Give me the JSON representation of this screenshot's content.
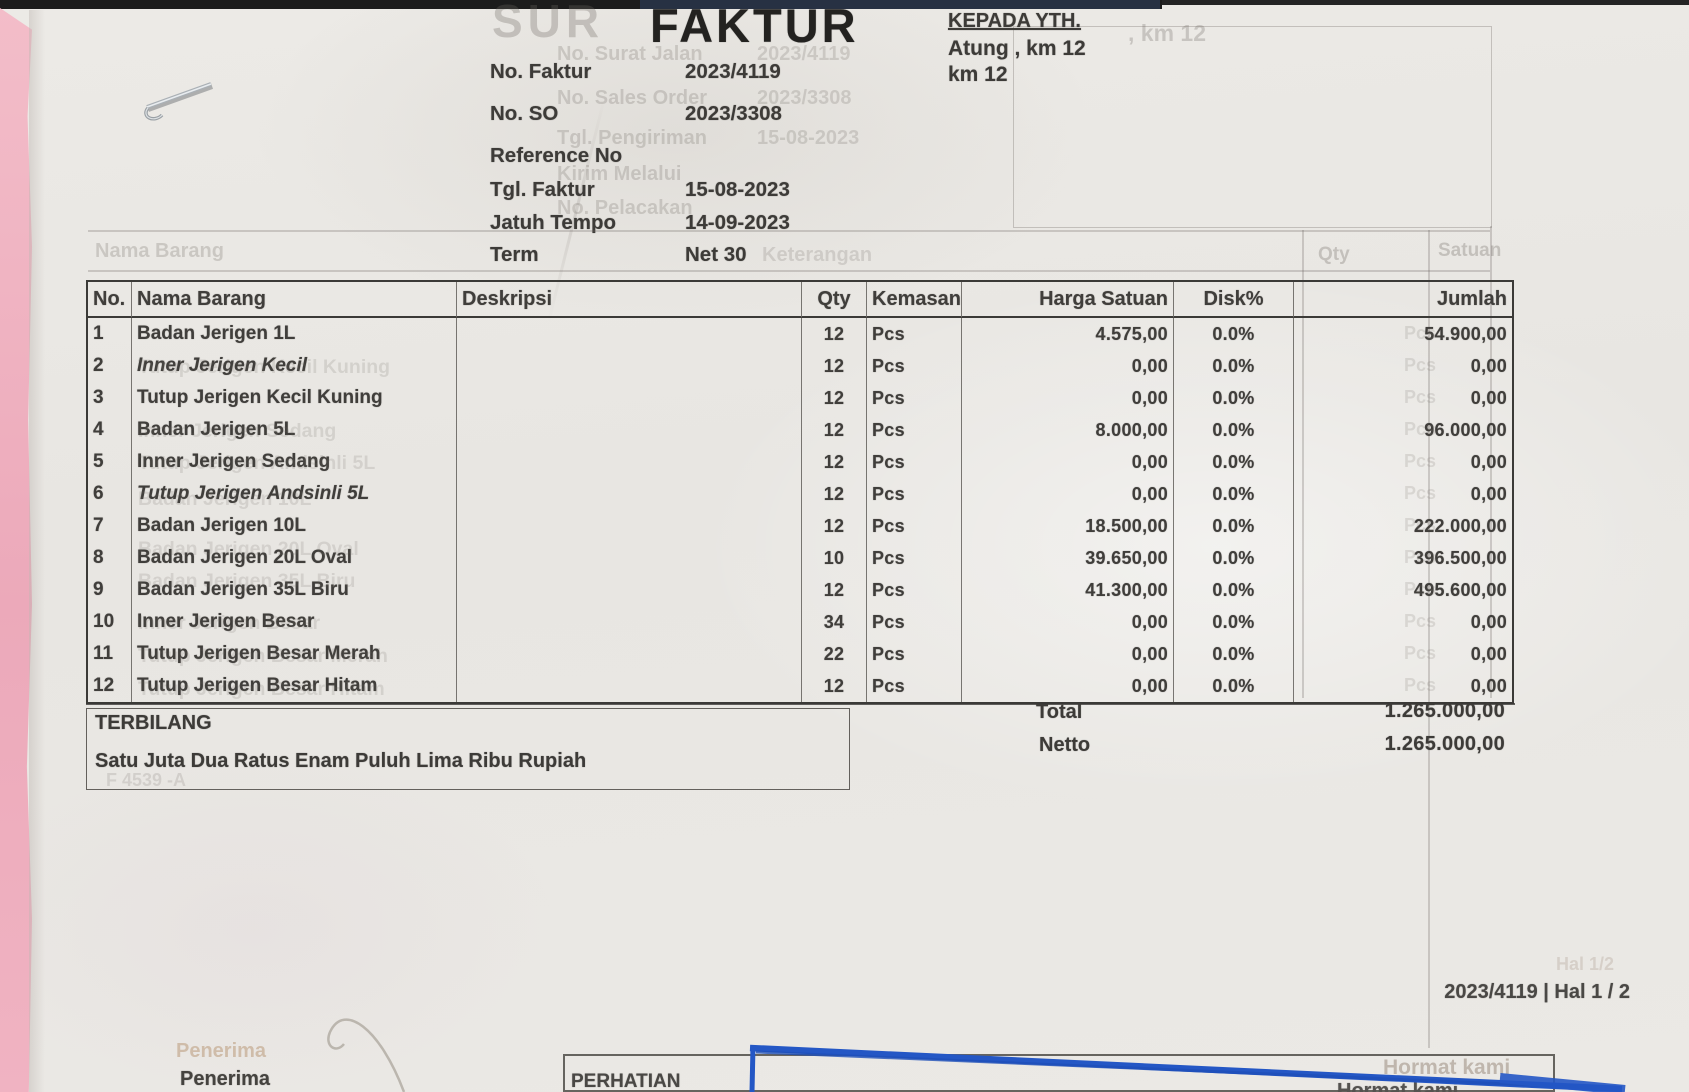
{
  "colors": {
    "pen_blue": "#2457c5",
    "paper": "#eae8e4",
    "ink": "#3d3b38"
  },
  "invoice": {
    "title": "FAKTUR",
    "recipient": {
      "heading": "KEPADA YTH.",
      "name": "Atung , km 12",
      "address": "km 12"
    },
    "meta": [
      {
        "label": "No. Faktur",
        "value": "2023/4119"
      },
      {
        "label": "No. SO",
        "value": "2023/3308"
      },
      {
        "label": "Reference No",
        "value": ""
      },
      {
        "label": "Tgl. Faktur",
        "value": "15-08-2023"
      },
      {
        "label": "Jatuh Tempo",
        "value": "14-09-2023"
      },
      {
        "label": "Term",
        "value": "Net 30"
      }
    ],
    "table": {
      "headers": [
        "No.",
        "Nama Barang",
        "Deskripsi",
        "Qty",
        "Kemasan",
        "Harga Satuan",
        "Disk%",
        "Jumlah"
      ],
      "rows": [
        [
          "1",
          "Badan Jerigen 1L",
          "",
          "12",
          "Pcs",
          "4.575,00",
          "0.0%",
          "54.900,00"
        ],
        [
          "2",
          "Inner Jerigen Kecil",
          "",
          "12",
          "Pcs",
          "0,00",
          "0.0%",
          "0,00"
        ],
        [
          "3",
          "Tutup Jerigen Kecil Kuning",
          "",
          "12",
          "Pcs",
          "0,00",
          "0.0%",
          "0,00"
        ],
        [
          "4",
          "Badan Jerigen 5L",
          "",
          "12",
          "Pcs",
          "8.000,00",
          "0.0%",
          "96.000,00"
        ],
        [
          "5",
          "Inner Jerigen Sedang",
          "",
          "12",
          "Pcs",
          "0,00",
          "0.0%",
          "0,00"
        ],
        [
          "6",
          "Tutup Jerigen Andsinli 5L",
          "",
          "12",
          "Pcs",
          "0,00",
          "0.0%",
          "0,00"
        ],
        [
          "7",
          "Badan Jerigen 10L",
          "",
          "12",
          "Pcs",
          "18.500,00",
          "0.0%",
          "222.000,00"
        ],
        [
          "8",
          "Badan Jerigen 20L Oval",
          "",
          "10",
          "Pcs",
          "39.650,00",
          "0.0%",
          "396.500,00"
        ],
        [
          "9",
          "Badan Jerigen 35L Biru",
          "",
          "12",
          "Pcs",
          "41.300,00",
          "0.0%",
          "495.600,00"
        ],
        [
          "10",
          "Inner Jerigen Besar",
          "",
          "34",
          "Pcs",
          "0,00",
          "0.0%",
          "0,00"
        ],
        [
          "11",
          "Tutup Jerigen Besar Merah",
          "",
          "22",
          "Pcs",
          "0,00",
          "0.0%",
          "0,00"
        ],
        [
          "12",
          "Tutup Jerigen Besar Hitam",
          "",
          "12",
          "Pcs",
          "0,00",
          "0.0%",
          "0,00"
        ]
      ],
      "italic_rows": [
        1,
        5
      ]
    },
    "terbilang": {
      "label": "TERBILANG",
      "text": "Satu Juta Dua Ratus Enam Puluh Lima Ribu Rupiah"
    },
    "totals": [
      {
        "label": "Total",
        "value": "1.265.000,00"
      },
      {
        "label": "Netto",
        "value": "1.265.000,00"
      }
    ],
    "page_ref": "2023/4119 | Hal 1 / 2",
    "signature_left": "Penerima",
    "attention": "PERHATIAN",
    "signature_right": "Hormat kami"
  },
  "ghost_bleedthrough": {
    "big_title": "SUR",
    "kepada_line": ", km 12",
    "meta": [
      {
        "label": "No. Surat Jalan",
        "value": "2023/4119"
      },
      {
        "label": "No. Sales Order",
        "value": "2023/3308"
      },
      {
        "label": "Tgl. Pengiriman",
        "value": "15-08-2023"
      },
      {
        "label": "Kirim Melalui",
        "value": ""
      },
      {
        "label": "No. Pelacakan",
        "value": ""
      }
    ],
    "col_nama": "Nama Barang",
    "col_keterangan": "Keterangan",
    "col_qty": "Qty",
    "col_satuan": "Satuan",
    "pcs": "Pcs",
    "items": [
      "Tutup Jerigen Kecil Kuning",
      "Inner Jerigen Sedang",
      "Tutup Jerigen Andsinli 5L",
      "Badan Jerigen 10L",
      "Badan Jerigen 20L Oval",
      "Badan Jerigen 35L Biru",
      "Inner Jerigen Besar",
      "Tutup Jerigen Besar Merah",
      "Tutup Jerigen Besar Hitam"
    ],
    "plate": "F 4539 -A",
    "hal": "Hal 1/2",
    "penerima": "Penerima",
    "hormat": "Hormat kami"
  }
}
